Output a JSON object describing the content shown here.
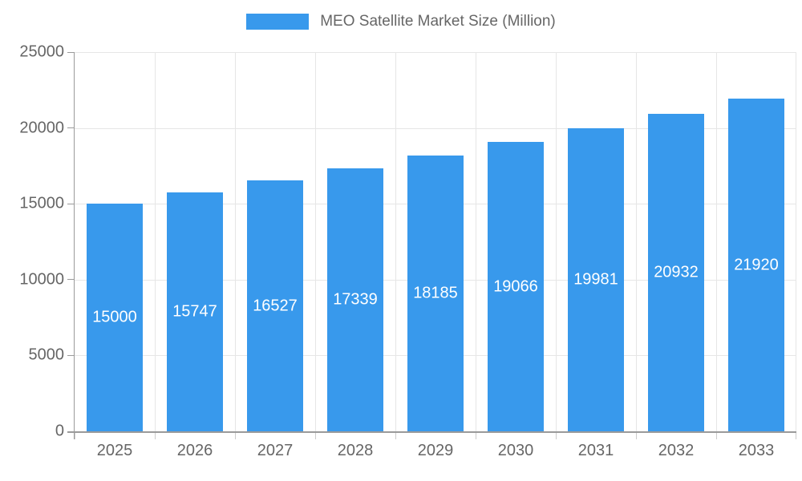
{
  "chart_data": {
    "type": "bar",
    "title": "MEO Satellite Market Size (Million)",
    "categories": [
      "2025",
      "2026",
      "2027",
      "2028",
      "2029",
      "2030",
      "2031",
      "2032",
      "2033"
    ],
    "values": [
      15000,
      15747,
      16527,
      17339,
      18185,
      19066,
      19981,
      20932,
      21920
    ],
    "value_labels": [
      "15000",
      "15747",
      "16527",
      "17339",
      "18185",
      "19066",
      "19981",
      "20932",
      "21920"
    ],
    "xlabel": "",
    "ylabel": "",
    "ylim": [
      0,
      25000
    ],
    "ytick_step": 5000,
    "ytick_labels": [
      "0",
      "5000",
      "10000",
      "15000",
      "20000",
      "25000"
    ],
    "grid": true,
    "legend_position": "top",
    "value_label_position": "center-inside",
    "colors": {
      "bar": "#3899ec",
      "value_label": "#ffffff",
      "axis_text": "#666666",
      "axis_line": "#9a9a9a",
      "gridline": "#e6e6e6",
      "x_tick": "#cccccc",
      "background": "#ffffff"
    }
  }
}
